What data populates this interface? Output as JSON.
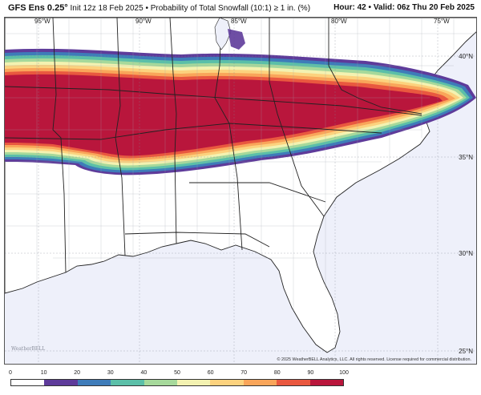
{
  "header": {
    "model": "GFS Ens 0.25°",
    "init": "Init 12z 18 Feb 2025",
    "product": "Probability of Total Snowfall (10:1) ≥ 1 in. (%)",
    "hour_label": "Hour:",
    "hour": "42",
    "valid_label": "Valid:",
    "valid": "06z Thu 20 Feb 2025"
  },
  "map": {
    "lon_labels": [
      "95°W",
      "90°W",
      "85°W",
      "80°W",
      "75°W"
    ],
    "lat_labels": [
      "40°N",
      "35°N",
      "30°N",
      "25°N"
    ],
    "watermark": "WeatherBELL",
    "copyright": "© 2025 WeatherBELL Analytics, LLC. All rights reserved. License required for commercial distribution."
  },
  "colorbar": {
    "ticks": [
      "0",
      "10",
      "20",
      "30",
      "40",
      "50",
      "60",
      "70",
      "80",
      "90",
      "100"
    ],
    "colors": [
      "#ffffff",
      "#5e3b9a",
      "#3e7cb9",
      "#5bbfa8",
      "#a6d99b",
      "#f3f2b1",
      "#fcd27e",
      "#f9a55a",
      "#e9583f",
      "#b9163c"
    ]
  },
  "colors": {
    "ocean": "#eef0fa",
    "land": "#ffffff",
    "border": "#222222",
    "county": "#9da2ad"
  }
}
